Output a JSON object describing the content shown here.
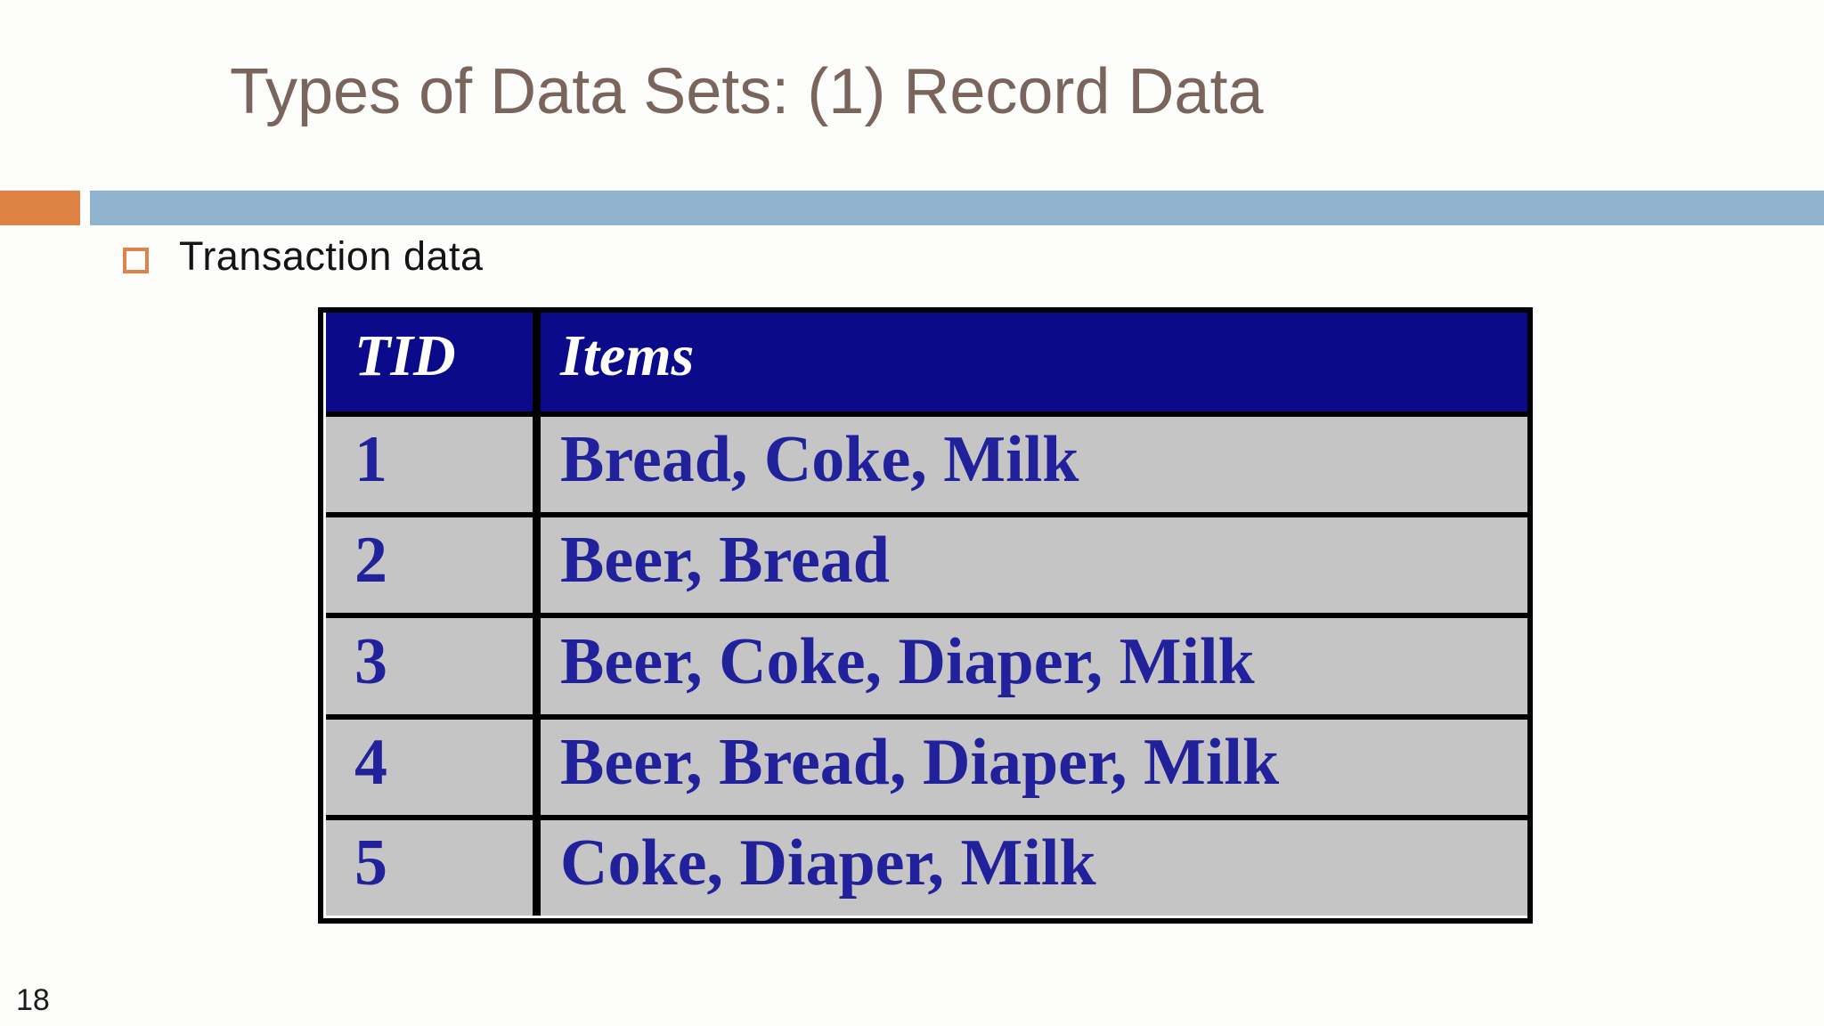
{
  "slide": {
    "title": "Types of Data Sets: (1) Record Data",
    "page_number": "18",
    "bullet": {
      "label": "Transaction data"
    },
    "table": {
      "headers": [
        "TID",
        "Items"
      ],
      "rows": [
        {
          "tid": "1",
          "items": "Bread, Coke, Milk"
        },
        {
          "tid": "2",
          "items": "Beer, Bread"
        },
        {
          "tid": "3",
          "items": "Beer, Coke, Diaper, Milk"
        },
        {
          "tid": "4",
          "items": "Beer, Bread, Diaper, Milk"
        },
        {
          "tid": "5",
          "items": "Coke, Diaper, Milk"
        }
      ]
    },
    "colors": {
      "title_text": "#7a655c",
      "accent_orange": "#dd8243",
      "accent_blue": "#8fb3cd",
      "bullet_outline": "#df834b",
      "table_header_bg": "#0a0a8b",
      "table_header_text": "#ffffff",
      "table_row_bg": "#c5c5c5",
      "table_row_text": "#21219b",
      "table_border": "#000000",
      "body_text": "#141414"
    }
  }
}
